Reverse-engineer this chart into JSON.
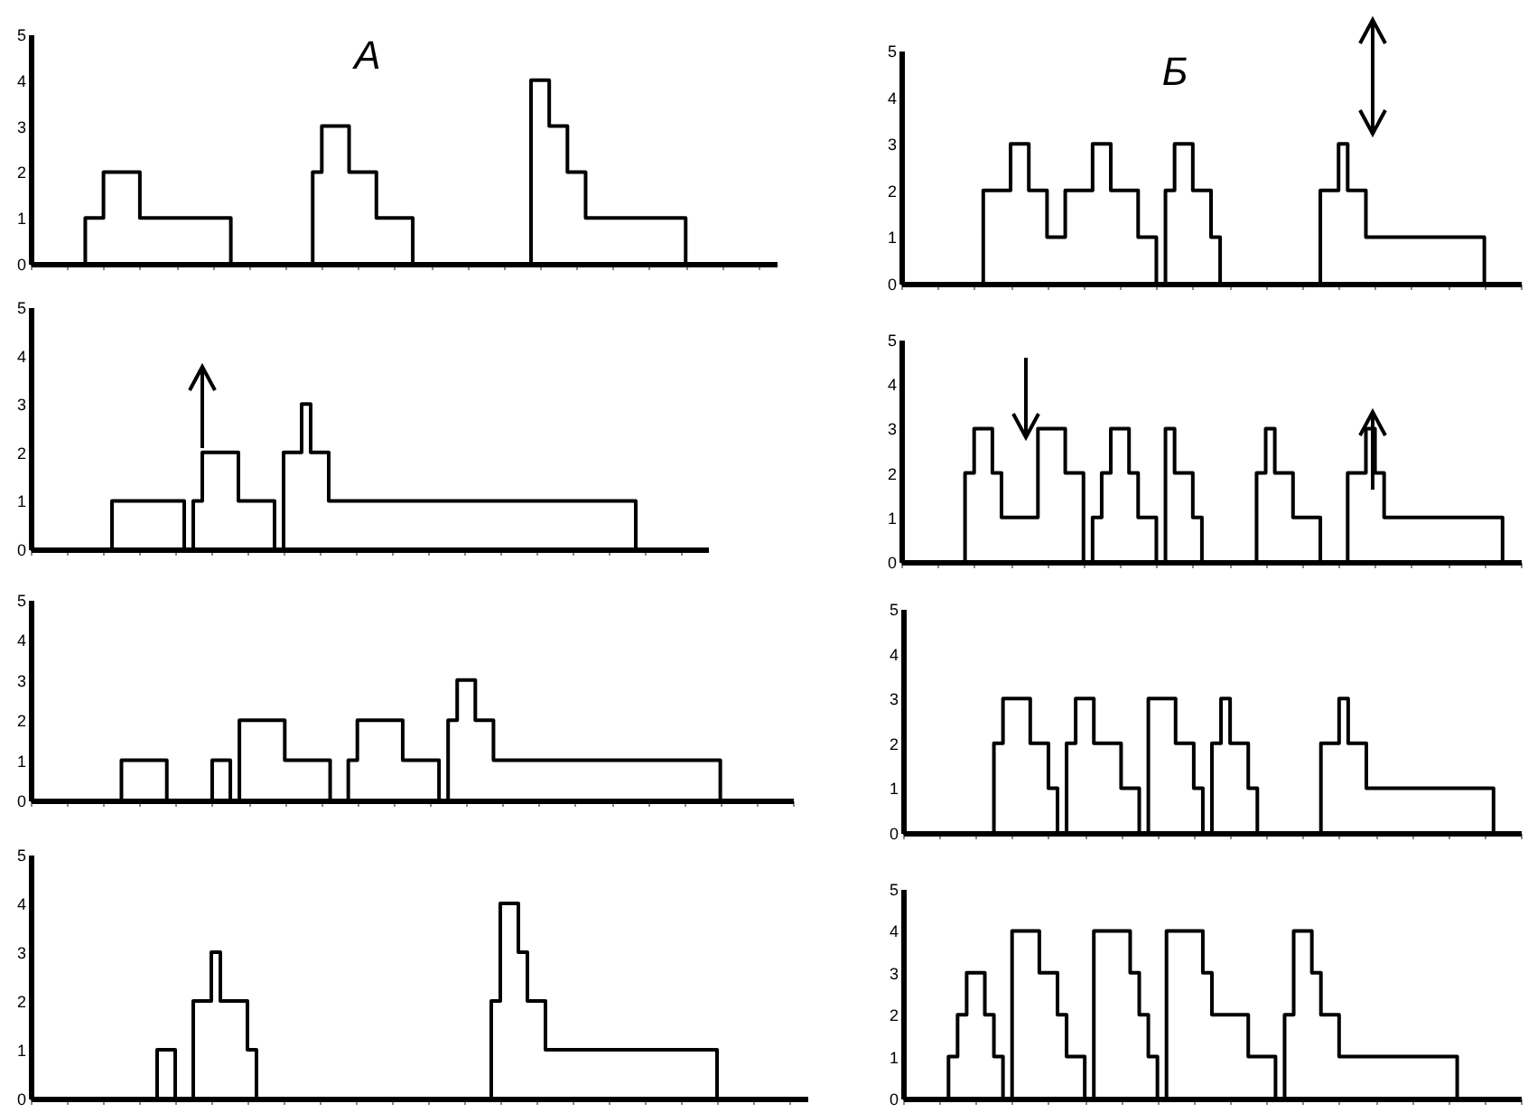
{
  "chart_data": [
    {
      "type": "step",
      "title": "А",
      "categories": [
        null,
        null,
        null,
        null,
        null,
        null,
        null,
        null,
        null,
        null,
        null,
        null,
        null,
        null,
        null,
        null,
        null,
        null,
        null,
        null,
        null,
        null,
        null,
        null,
        null,
        null,
        null,
        null,
        null,
        null,
        null,
        null,
        null,
        null,
        null,
        null,
        null,
        null,
        null,
        null,
        null,
        null,
        null,
        null,
        null,
        null,
        null,
        null,
        null,
        null,
        null,
        null,
        null,
        null,
        null,
        null,
        null,
        null,
        null,
        null,
        null,
        null,
        null,
        null,
        null,
        null,
        null,
        null,
        null,
        null,
        null,
        null,
        null,
        null,
        null,
        null,
        null,
        null,
        null,
        null,
        null,
        null,
        null
      ],
      "values": [
        0,
        0,
        0,
        0,
        0,
        0,
        1,
        1,
        2,
        2,
        2,
        2,
        1,
        1,
        1,
        1,
        1,
        1,
        1,
        1,
        1,
        1,
        0,
        0,
        0,
        0,
        0,
        0,
        0,
        0,
        0,
        2,
        3,
        3,
        3,
        2,
        2,
        2,
        1,
        1,
        1,
        1,
        0,
        0,
        0,
        0,
        0,
        0,
        0,
        0,
        0,
        0,
        0,
        0,
        0,
        4,
        4,
        3,
        3,
        2,
        2,
        1,
        1,
        1,
        1,
        1,
        1,
        1,
        1,
        1,
        1,
        1,
        0,
        0,
        0,
        0,
        0,
        0,
        0,
        0,
        0,
        0,
        0
      ],
      "color": "#000000",
      "ylim": [
        0,
        5
      ],
      "yticks": [
        0,
        1,
        2,
        3,
        4,
        5
      ],
      "tick_labels": "y"
    },
    {
      "type": "step",
      "categories": [
        null,
        null,
        null,
        null,
        null,
        null,
        null,
        null,
        null,
        null,
        null,
        null,
        null,
        null,
        null,
        null,
        null,
        null,
        null,
        null,
        null,
        null,
        null,
        null,
        null,
        null,
        null,
        null,
        null,
        null,
        null,
        null,
        null,
        null,
        null,
        null,
        null,
        null,
        null,
        null,
        null,
        null,
        null,
        null,
        null,
        null,
        null,
        null,
        null,
        null,
        null,
        null,
        null,
        null,
        null,
        null,
        null,
        null,
        null,
        null,
        null,
        null,
        null,
        null,
        null,
        null,
        null,
        null,
        null,
        null,
        null,
        null,
        null,
        null,
        null,
        null
      ],
      "values": [
        0,
        0,
        0,
        0,
        0,
        0,
        0,
        0,
        0,
        1,
        1,
        1,
        1,
        1,
        1,
        1,
        1,
        0,
        1,
        2,
        2,
        2,
        2,
        1,
        1,
        1,
        1,
        0,
        2,
        2,
        3,
        2,
        2,
        1,
        1,
        1,
        1,
        1,
        1,
        1,
        1,
        1,
        1,
        1,
        1,
        1,
        1,
        1,
        1,
        1,
        1,
        1,
        1,
        1,
        1,
        1,
        1,
        1,
        1,
        1,
        1,
        1,
        1,
        1,
        1,
        1,
        1,
        0,
        0,
        0,
        0,
        0,
        0,
        0,
        0,
        0
      ],
      "color": "#000000",
      "ylim": [
        0,
        5
      ],
      "yticks": [
        0,
        1,
        2,
        3,
        4,
        5
      ],
      "tick_labels": "y"
    },
    {
      "type": "step",
      "categories": [
        null,
        null,
        null,
        null,
        null,
        null,
        null,
        null,
        null,
        null,
        null,
        null,
        null,
        null,
        null,
        null,
        null,
        null,
        null,
        null,
        null,
        null,
        null,
        null,
        null,
        null,
        null,
        null,
        null,
        null,
        null,
        null,
        null,
        null,
        null,
        null,
        null,
        null,
        null,
        null,
        null,
        null,
        null,
        null,
        null,
        null,
        null,
        null,
        null,
        null,
        null,
        null,
        null,
        null,
        null,
        null,
        null,
        null,
        null,
        null,
        null,
        null,
        null,
        null,
        null,
        null,
        null,
        null,
        null,
        null,
        null,
        null,
        null,
        null,
        null,
        null,
        null,
        null,
        null,
        null,
        null,
        null,
        null,
        null,
        null
      ],
      "values": [
        0,
        0,
        0,
        0,
        0,
        0,
        0,
        0,
        0,
        0,
        1,
        1,
        1,
        1,
        1,
        0,
        0,
        0,
        0,
        0,
        1,
        1,
        0,
        2,
        2,
        2,
        2,
        2,
        1,
        1,
        1,
        1,
        1,
        0,
        0,
        1,
        2,
        2,
        2,
        2,
        2,
        1,
        1,
        1,
        1,
        0,
        2,
        3,
        3,
        2,
        2,
        1,
        1,
        1,
        1,
        1,
        1,
        1,
        1,
        1,
        1,
        1,
        1,
        1,
        1,
        1,
        1,
        1,
        1,
        1,
        1,
        1,
        1,
        1,
        1,
        1,
        0,
        0,
        0,
        0,
        0,
        0,
        0,
        0,
        0
      ],
      "color": "#000000",
      "ylim": [
        0,
        5
      ],
      "yticks": [
        0,
        1,
        2,
        3,
        4,
        5
      ],
      "tick_labels": "y"
    },
    {
      "type": "step",
      "categories": [
        null,
        null,
        null,
        null,
        null,
        null,
        null,
        null,
        null,
        null,
        null,
        null,
        null,
        null,
        null,
        null,
        null,
        null,
        null,
        null,
        null,
        null,
        null,
        null,
        null,
        null,
        null,
        null,
        null,
        null,
        null,
        null,
        null,
        null,
        null,
        null,
        null,
        null,
        null,
        null,
        null,
        null,
        null,
        null,
        null,
        null,
        null,
        null,
        null,
        null,
        null,
        null,
        null,
        null,
        null,
        null,
        null,
        null,
        null,
        null,
        null,
        null,
        null,
        null,
        null,
        null,
        null,
        null,
        null,
        null,
        null,
        null,
        null,
        null,
        null,
        null,
        null,
        null,
        null,
        null,
        null,
        null,
        null,
        null,
        null,
        null,
        null
      ],
      "values": [
        0,
        0,
        0,
        0,
        0,
        0,
        0,
        0,
        0,
        0,
        0,
        0,
        0,
        0,
        1,
        1,
        0,
        0,
        2,
        2,
        3,
        2,
        2,
        2,
        1,
        0,
        0,
        0,
        0,
        0,
        0,
        0,
        0,
        0,
        0,
        0,
        0,
        0,
        0,
        0,
        0,
        0,
        0,
        0,
        0,
        0,
        0,
        0,
        0,
        0,
        0,
        2,
        4,
        4,
        3,
        2,
        2,
        1,
        1,
        1,
        1,
        1,
        1,
        1,
        1,
        1,
        1,
        1,
        1,
        1,
        1,
        1,
        1,
        1,
        1,
        1,
        0,
        0,
        0,
        0,
        0,
        0,
        0,
        0,
        0,
        0,
        0
      ],
      "color": "#000000",
      "ylim": [
        0,
        5
      ],
      "yticks": [
        0,
        1,
        2,
        3,
        4,
        5
      ],
      "tick_labels": "y"
    },
    {
      "type": "step",
      "title": "Б",
      "categories": [
        null,
        null,
        null,
        null,
        null,
        null,
        null,
        null,
        null,
        null,
        null,
        null,
        null,
        null,
        null,
        null,
        null,
        null,
        null,
        null,
        null,
        null,
        null,
        null,
        null,
        null,
        null,
        null,
        null,
        null,
        null,
        null,
        null,
        null,
        null,
        null,
        null,
        null,
        null,
        null,
        null,
        null,
        null,
        null,
        null,
        null,
        null,
        null,
        null,
        null,
        null,
        null,
        null,
        null,
        null,
        null,
        null,
        null,
        null,
        null,
        null,
        null,
        null,
        null,
        null,
        null,
        null,
        null,
        null
      ],
      "values": [
        0,
        0,
        0,
        0,
        0,
        0,
        0,
        0,
        0,
        2,
        2,
        2,
        3,
        3,
        2,
        2,
        1,
        1,
        2,
        2,
        2,
        3,
        3,
        2,
        2,
        2,
        1,
        1,
        0,
        2,
        3,
        3,
        2,
        2,
        1,
        0,
        0,
        0,
        0,
        0,
        0,
        0,
        0,
        0,
        0,
        0,
        2,
        2,
        3,
        2,
        2,
        1,
        1,
        1,
        1,
        1,
        1,
        1,
        1,
        1,
        1,
        1,
        1,
        1,
        0,
        0,
        0,
        0,
        0
      ],
      "color": "#000000",
      "ylim": [
        0,
        5
      ],
      "yticks": [
        0,
        1,
        2,
        3,
        4,
        5
      ],
      "tick_labels": "y"
    },
    {
      "type": "step",
      "categories": [
        null,
        null,
        null,
        null,
        null,
        null,
        null,
        null,
        null,
        null,
        null,
        null,
        null,
        null,
        null,
        null,
        null,
        null,
        null,
        null,
        null,
        null,
        null,
        null,
        null,
        null,
        null,
        null,
        null,
        null,
        null,
        null,
        null,
        null,
        null,
        null,
        null,
        null,
        null,
        null,
        null,
        null,
        null,
        null,
        null,
        null,
        null,
        null,
        null,
        null,
        null,
        null,
        null,
        null,
        null,
        null,
        null,
        null,
        null,
        null,
        null,
        null,
        null,
        null,
        null,
        null,
        null,
        null,
        null
      ],
      "values": [
        0,
        0,
        0,
        0,
        0,
        0,
        0,
        2,
        3,
        3,
        2,
        1,
        1,
        1,
        1,
        3,
        3,
        3,
        2,
        2,
        0,
        1,
        2,
        3,
        3,
        2,
        1,
        1,
        0,
        3,
        2,
        2,
        1,
        0,
        0,
        0,
        0,
        0,
        0,
        2,
        3,
        2,
        2,
        1,
        1,
        1,
        0,
        0,
        0,
        2,
        2,
        3,
        2,
        1,
        1,
        1,
        1,
        1,
        1,
        1,
        1,
        1,
        1,
        1,
        1,
        1,
        0,
        0,
        0
      ],
      "color": "#000000",
      "ylim": [
        0,
        5
      ],
      "yticks": [
        0,
        1,
        2,
        3,
        4,
        5
      ],
      "tick_labels": "y"
    },
    {
      "type": "step",
      "categories": [
        null,
        null,
        null,
        null,
        null,
        null,
        null,
        null,
        null,
        null,
        null,
        null,
        null,
        null,
        null,
        null,
        null,
        null,
        null,
        null,
        null,
        null,
        null,
        null,
        null,
        null,
        null,
        null,
        null,
        null,
        null,
        null,
        null,
        null,
        null,
        null,
        null,
        null,
        null,
        null,
        null,
        null,
        null,
        null,
        null,
        null,
        null,
        null,
        null,
        null,
        null,
        null,
        null,
        null,
        null,
        null,
        null,
        null,
        null,
        null,
        null,
        null,
        null,
        null,
        null,
        null,
        null,
        null,
        null
      ],
      "values": [
        0,
        0,
        0,
        0,
        0,
        0,
        0,
        0,
        0,
        0,
        2,
        3,
        3,
        3,
        2,
        2,
        1,
        0,
        2,
        3,
        3,
        2,
        2,
        2,
        1,
        1,
        0,
        3,
        3,
        3,
        2,
        2,
        1,
        0,
        2,
        3,
        2,
        2,
        1,
        0,
        0,
        0,
        0,
        0,
        0,
        0,
        2,
        2,
        3,
        2,
        2,
        1,
        1,
        1,
        1,
        1,
        1,
        1,
        1,
        1,
        1,
        1,
        1,
        1,
        1,
        0,
        0,
        0,
        0
      ],
      "color": "#000000",
      "ylim": [
        0,
        5
      ],
      "yticks": [
        0,
        1,
        2,
        3,
        4,
        5
      ],
      "tick_labels": "y"
    },
    {
      "type": "step",
      "categories": [
        null,
        null,
        null,
        null,
        null,
        null,
        null,
        null,
        null,
        null,
        null,
        null,
        null,
        null,
        null,
        null,
        null,
        null,
        null,
        null,
        null,
        null,
        null,
        null,
        null,
        null,
        null,
        null,
        null,
        null,
        null,
        null,
        null,
        null,
        null,
        null,
        null,
        null,
        null,
        null,
        null,
        null,
        null,
        null,
        null,
        null,
        null,
        null,
        null,
        null,
        null,
        null,
        null,
        null,
        null,
        null,
        null,
        null,
        null,
        null,
        null,
        null,
        null,
        null,
        null,
        null,
        null,
        null,
        null
      ],
      "values": [
        0,
        0,
        0,
        0,
        0,
        1,
        2,
        3,
        3,
        2,
        1,
        0,
        4,
        4,
        4,
        3,
        3,
        2,
        1,
        1,
        0,
        4,
        4,
        4,
        4,
        3,
        2,
        1,
        0,
        4,
        4,
        4,
        4,
        3,
        2,
        2,
        2,
        2,
        1,
        1,
        1,
        0,
        2,
        4,
        4,
        3,
        2,
        2,
        1,
        1,
        1,
        1,
        1,
        1,
        1,
        1,
        1,
        1,
        1,
        1,
        1,
        0,
        0,
        0,
        0,
        0,
        0,
        0,
        0
      ],
      "color": "#000000",
      "ylim": [
        0,
        5
      ],
      "yticks": [
        0,
        1,
        2,
        3,
        4,
        5
      ],
      "tick_labels": "y"
    }
  ]
}
